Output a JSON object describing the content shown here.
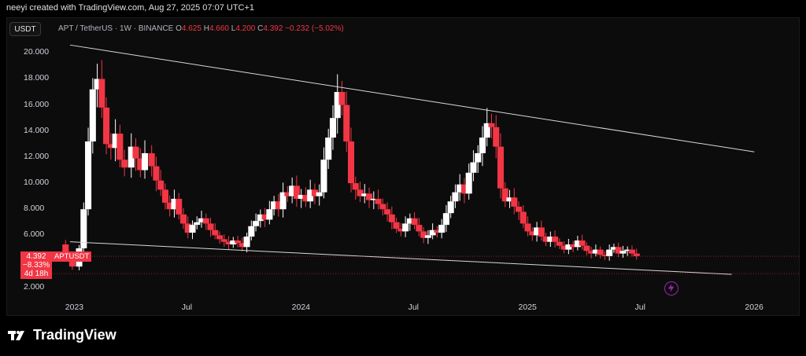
{
  "header": {
    "credit": "neeyi created with TradingView.com, Aug 27, 2025 07:07 UTC+1"
  },
  "toolbar": {
    "currency_label": "USDT"
  },
  "legend": {
    "symbol": "APT / TetherUS · 1W · BINANCE",
    "open_k": "O",
    "open_v": "4.625",
    "high_k": "H",
    "high_v": "4.660",
    "low_k": "L",
    "low_v": "4.200",
    "close_k": "C",
    "close_v": "4.392",
    "change_v": "−0.232 (−5.02%)"
  },
  "price_tag": {
    "price": "4.392",
    "change": "−8.33%",
    "countdown": "4d 18h",
    "symbol": "APTUSDT"
  },
  "footer": {
    "brand": "TradingView"
  },
  "colors": {
    "up": "#ffffff",
    "down": "#f23645",
    "trendline": "#d9d9d9",
    "grid": "#1a1a1a",
    "accent": "#9c27b0"
  },
  "chart_data": {
    "type": "candlestick",
    "title": "APT / TetherUS · 1W · BINANCE",
    "y_ticks": [
      "20.000",
      "18.000",
      "16.000",
      "14.000",
      "12.000",
      "10.000",
      "8.000",
      "6.000",
      "2.000"
    ],
    "x_ticks": [
      "2023",
      "Jul",
      "2024",
      "Jul",
      "2025",
      "Jul",
      "2026"
    ],
    "ylim": [
      1.5,
      20.8
    ],
    "xlim": [
      2022.9,
      2026.2
    ],
    "grid": false,
    "trendlines": [
      {
        "name": "upper",
        "from": [
          2022.98,
          20.6
        ],
        "to": [
          2026.0,
          12.4
        ]
      },
      {
        "name": "lower",
        "from": [
          2022.98,
          5.5
        ],
        "to": [
          2025.9,
          3.0
        ]
      }
    ],
    "close_path": [
      [
        2022.92,
        5.3
      ],
      [
        2022.96,
        4.3
      ],
      [
        2022.99,
        3.6
      ],
      [
        2023.02,
        5.0
      ],
      [
        2023.04,
        8.0
      ],
      [
        2023.06,
        13.2
      ],
      [
        2023.08,
        17.2
      ],
      [
        2023.1,
        18.0
      ],
      [
        2023.12,
        15.8
      ],
      [
        2023.14,
        13.0
      ],
      [
        2023.16,
        12.7
      ],
      [
        2023.18,
        13.8
      ],
      [
        2023.2,
        11.8
      ],
      [
        2023.22,
        11.2
      ],
      [
        2023.25,
        12.8
      ],
      [
        2023.27,
        11.9
      ],
      [
        2023.29,
        11.0
      ],
      [
        2023.31,
        12.3
      ],
      [
        2023.34,
        11.3
      ],
      [
        2023.36,
        10.2
      ],
      [
        2023.38,
        9.5
      ],
      [
        2023.4,
        8.5
      ],
      [
        2023.42,
        8.0
      ],
      [
        2023.44,
        8.8
      ],
      [
        2023.46,
        7.6
      ],
      [
        2023.48,
        6.9
      ],
      [
        2023.5,
        6.2
      ],
      [
        2023.52,
        6.8
      ],
      [
        2023.54,
        7.0
      ],
      [
        2023.56,
        7.3
      ],
      [
        2023.58,
        6.9
      ],
      [
        2023.6,
        6.4
      ],
      [
        2023.62,
        6.0
      ],
      [
        2023.64,
        5.7
      ],
      [
        2023.66,
        5.5
      ],
      [
        2023.68,
        5.3
      ],
      [
        2023.7,
        5.6
      ],
      [
        2023.72,
        5.4
      ],
      [
        2023.74,
        5.1
      ],
      [
        2023.76,
        5.9
      ],
      [
        2023.78,
        6.7
      ],
      [
        2023.8,
        7.1
      ],
      [
        2023.82,
        7.6
      ],
      [
        2023.84,
        7.2
      ],
      [
        2023.86,
        8.0
      ],
      [
        2023.88,
        8.6
      ],
      [
        2023.9,
        8.0
      ],
      [
        2023.92,
        9.3
      ],
      [
        2023.94,
        9.0
      ],
      [
        2023.96,
        9.8
      ],
      [
        2023.98,
        8.8
      ],
      [
        2024.0,
        9.1
      ],
      [
        2024.02,
        8.6
      ],
      [
        2024.04,
        9.5
      ],
      [
        2024.06,
        9.0
      ],
      [
        2024.08,
        9.3
      ],
      [
        2024.1,
        11.8
      ],
      [
        2024.12,
        13.5
      ],
      [
        2024.14,
        15.0
      ],
      [
        2024.16,
        17.0
      ],
      [
        2024.18,
        16.0
      ],
      [
        2024.2,
        13.2
      ],
      [
        2024.22,
        10.0
      ],
      [
        2024.24,
        9.5
      ],
      [
        2024.26,
        9.0
      ],
      [
        2024.28,
        9.2
      ],
      [
        2024.3,
        8.7
      ],
      [
        2024.32,
        8.8
      ],
      [
        2024.34,
        8.4
      ],
      [
        2024.36,
        8.0
      ],
      [
        2024.38,
        7.6
      ],
      [
        2024.4,
        7.0
      ],
      [
        2024.42,
        6.5
      ],
      [
        2024.44,
        6.3
      ],
      [
        2024.46,
        6.9
      ],
      [
        2024.48,
        7.3
      ],
      [
        2024.5,
        6.8
      ],
      [
        2024.52,
        6.3
      ],
      [
        2024.54,
        5.8
      ],
      [
        2024.56,
        6.0
      ],
      [
        2024.58,
        6.4
      ],
      [
        2024.6,
        6.2
      ],
      [
        2024.62,
        6.8
      ],
      [
        2024.64,
        7.7
      ],
      [
        2024.66,
        8.6
      ],
      [
        2024.68,
        9.3
      ],
      [
        2024.7,
        9.9
      ],
      [
        2024.72,
        9.2
      ],
      [
        2024.74,
        10.8
      ],
      [
        2024.76,
        11.6
      ],
      [
        2024.78,
        12.3
      ],
      [
        2024.8,
        13.5
      ],
      [
        2024.82,
        14.6
      ],
      [
        2024.84,
        14.3
      ],
      [
        2024.86,
        12.8
      ],
      [
        2024.88,
        9.6
      ],
      [
        2024.9,
        8.6
      ],
      [
        2024.92,
        8.9
      ],
      [
        2024.94,
        8.2
      ],
      [
        2024.96,
        7.8
      ],
      [
        2024.98,
        6.9
      ],
      [
        2025.0,
        6.3
      ],
      [
        2025.02,
        6.0
      ],
      [
        2025.04,
        6.6
      ],
      [
        2025.06,
        5.9
      ],
      [
        2025.08,
        5.5
      ],
      [
        2025.1,
        5.9
      ],
      [
        2025.12,
        5.5
      ],
      [
        2025.14,
        5.2
      ],
      [
        2025.16,
        4.9
      ],
      [
        2025.18,
        5.3
      ],
      [
        2025.2,
        5.1
      ],
      [
        2025.22,
        5.6
      ],
      [
        2025.24,
        5.2
      ],
      [
        2025.26,
        4.8
      ],
      [
        2025.28,
        4.6
      ],
      [
        2025.3,
        4.9
      ],
      [
        2025.32,
        4.5
      ],
      [
        2025.34,
        4.4
      ],
      [
        2025.36,
        4.9
      ],
      [
        2025.38,
        5.1
      ],
      [
        2025.4,
        4.6
      ],
      [
        2025.42,
        4.8
      ],
      [
        2025.44,
        4.9
      ],
      [
        2025.46,
        4.6
      ],
      [
        2025.48,
        4.4
      ]
    ]
  }
}
